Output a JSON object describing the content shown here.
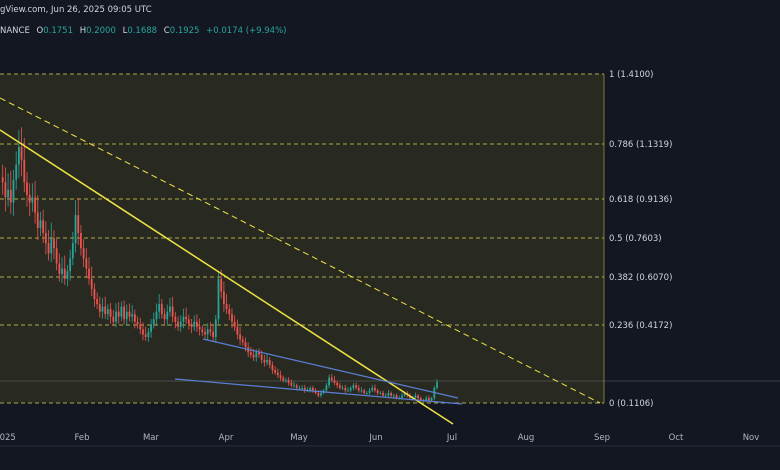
{
  "header": {
    "source_line": "gView.com, Jun 26, 2025 09:05 UTC",
    "exchange": "NANCE",
    "open_label": "O",
    "open": "0.1751",
    "high_label": "H",
    "high": "0.2000",
    "low_label": "L",
    "low": "0.1688",
    "close_label": "C",
    "close": "0.1925",
    "change": "+0.0174 (+9.94%)"
  },
  "colors": {
    "background": "#131722",
    "up": "#26a69a",
    "down": "#ef5350",
    "fib_line": "#c8c24a",
    "trendline": "#f0e442",
    "channel": "#5b7fd6",
    "fib_zone": "#3a3a22"
  },
  "chart_data": {
    "type": "candlestick",
    "x_tick_labels": [
      "2025",
      "Feb",
      "Mar",
      "Apr",
      "May",
      "Jun",
      "Jul",
      "Aug",
      "Sep",
      "Oct",
      "Nov"
    ],
    "y_range": [
      0.06,
      1.5
    ],
    "fib_levels": [
      {
        "ratio": "1",
        "price": 1.41,
        "label": "1 (1.4100)"
      },
      {
        "ratio": "0.786",
        "price": 1.1319,
        "label": "0.786 (1.1319)"
      },
      {
        "ratio": "0.618",
        "price": 0.9136,
        "label": "0.618 (0.9136)"
      },
      {
        "ratio": "0.5",
        "price": 0.7603,
        "label": "0.5 (0.7603)"
      },
      {
        "ratio": "0.382",
        "price": 0.607,
        "label": "0.382 (0.6070)"
      },
      {
        "ratio": "0.236",
        "price": 0.4172,
        "label": "0.236 (0.4172)"
      },
      {
        "ratio": "0",
        "price": 0.1106,
        "label": "0 (0.1106)"
      }
    ],
    "last_close": 0.1925,
    "price_path": [
      1.0,
      0.98,
      0.92,
      0.95,
      0.9,
      0.99,
      1.05,
      1.12,
      1.07,
      0.98,
      0.93,
      0.9,
      0.92,
      0.86,
      0.8,
      0.83,
      0.78,
      0.74,
      0.7,
      0.76,
      0.72,
      0.66,
      0.62,
      0.64,
      0.6,
      0.63,
      0.68,
      0.74,
      0.85,
      0.78,
      0.72,
      0.68,
      0.64,
      0.6,
      0.56,
      0.52,
      0.5,
      0.47,
      0.49,
      0.46,
      0.48,
      0.45,
      0.43,
      0.47,
      0.45,
      0.49,
      0.44,
      0.47,
      0.45,
      0.46,
      0.43,
      0.42,
      0.4,
      0.38,
      0.37,
      0.39,
      0.42,
      0.44,
      0.47,
      0.5,
      0.46,
      0.44,
      0.47,
      0.49,
      0.45,
      0.43,
      0.41,
      0.43,
      0.45,
      0.44,
      0.42,
      0.41,
      0.43,
      0.41,
      0.4,
      0.39,
      0.38,
      0.4,
      0.39,
      0.37,
      0.44,
      0.6,
      0.55,
      0.5,
      0.48,
      0.46,
      0.43,
      0.41,
      0.38,
      0.36,
      0.35,
      0.33,
      0.31,
      0.3,
      0.29,
      0.31,
      0.3,
      0.28,
      0.27,
      0.28,
      0.26,
      0.24,
      0.23,
      0.22,
      0.21,
      0.2,
      0.2,
      0.19,
      0.18,
      0.18,
      0.17,
      0.17,
      0.17,
      0.16,
      0.16,
      0.17,
      0.16,
      0.15,
      0.14,
      0.15,
      0.16,
      0.18,
      0.21,
      0.2,
      0.19,
      0.18,
      0.17,
      0.17,
      0.16,
      0.16,
      0.17,
      0.18,
      0.17,
      0.16,
      0.16,
      0.15,
      0.15,
      0.16,
      0.17,
      0.16,
      0.15,
      0.15,
      0.14,
      0.14,
      0.15,
      0.14,
      0.14,
      0.13,
      0.13,
      0.14,
      0.15,
      0.14,
      0.13,
      0.13,
      0.14,
      0.13,
      0.12,
      0.12,
      0.13,
      0.12,
      0.13,
      0.17,
      0.1925
    ]
  }
}
